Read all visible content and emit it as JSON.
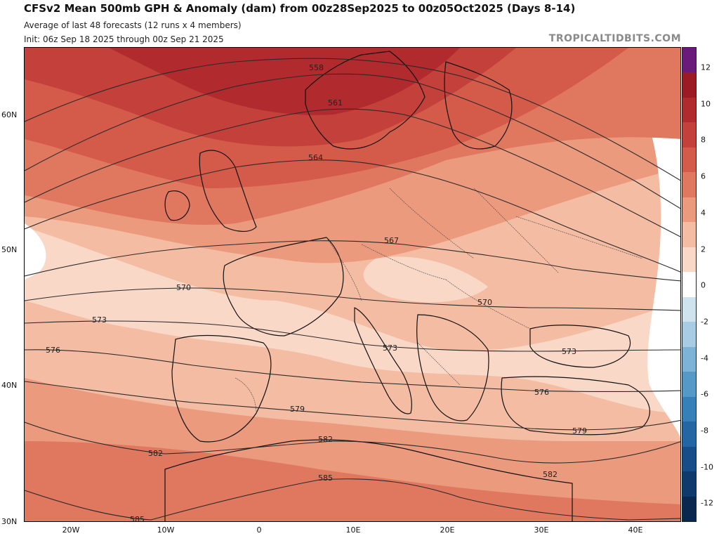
{
  "header": {
    "title": "CFSv2 Mean 500mb GPH & Anomaly (dam) from 00z28Sep2025 to 00z05Oct2025 (Days 8-14)",
    "subtitle_1": "Average of last 48 forecasts (12 runs x 4 members)",
    "subtitle_2": "Init: 06z Sep 18 2025 through 00z Sep 21 2025",
    "watermark": "TROPICALTIDBITS.COM"
  },
  "axes": {
    "lat_labels": [
      "60N",
      "50N",
      "40N",
      "30N"
    ],
    "lon_labels": [
      "20W",
      "10W",
      "0",
      "10E",
      "20E",
      "30E",
      "40E"
    ]
  },
  "contour_labels": [
    "558",
    "561",
    "564",
    "567",
    "570",
    "570",
    "573",
    "573",
    "573",
    "576",
    "576",
    "579",
    "579",
    "582",
    "582",
    "582",
    "585",
    "585"
  ],
  "colorbar": {
    "labels": [
      "12",
      "10",
      "8",
      "6",
      "4",
      "2",
      "0",
      "-2",
      "-4",
      "-6",
      "-8",
      "-10",
      "-12"
    ],
    "colors": [
      "#6a1a7a",
      "#9b1a24",
      "#b02a2e",
      "#c4403a",
      "#d45a4a",
      "#e07860",
      "#eb9a7e",
      "#f4bca2",
      "#fad8c8",
      "#ffffff",
      "#cfe3ef",
      "#a8cce3",
      "#7db3d6",
      "#5499c8",
      "#3580b8",
      "#2366a3",
      "#174e8a",
      "#0f3a6d",
      "#0a2750"
    ]
  },
  "map_colors": {
    "anomaly_10": "#b02a2e",
    "anomaly_8": "#c4403a",
    "anomaly_6": "#d45a4a",
    "anomaly_4": "#e07860",
    "anomaly_3": "#eb9a7e",
    "anomaly_2": "#f4bca2",
    "anomaly_1": "#fad8c8",
    "anomaly_0": "#ffffff",
    "anomaly_neg": "#a8cce3"
  }
}
